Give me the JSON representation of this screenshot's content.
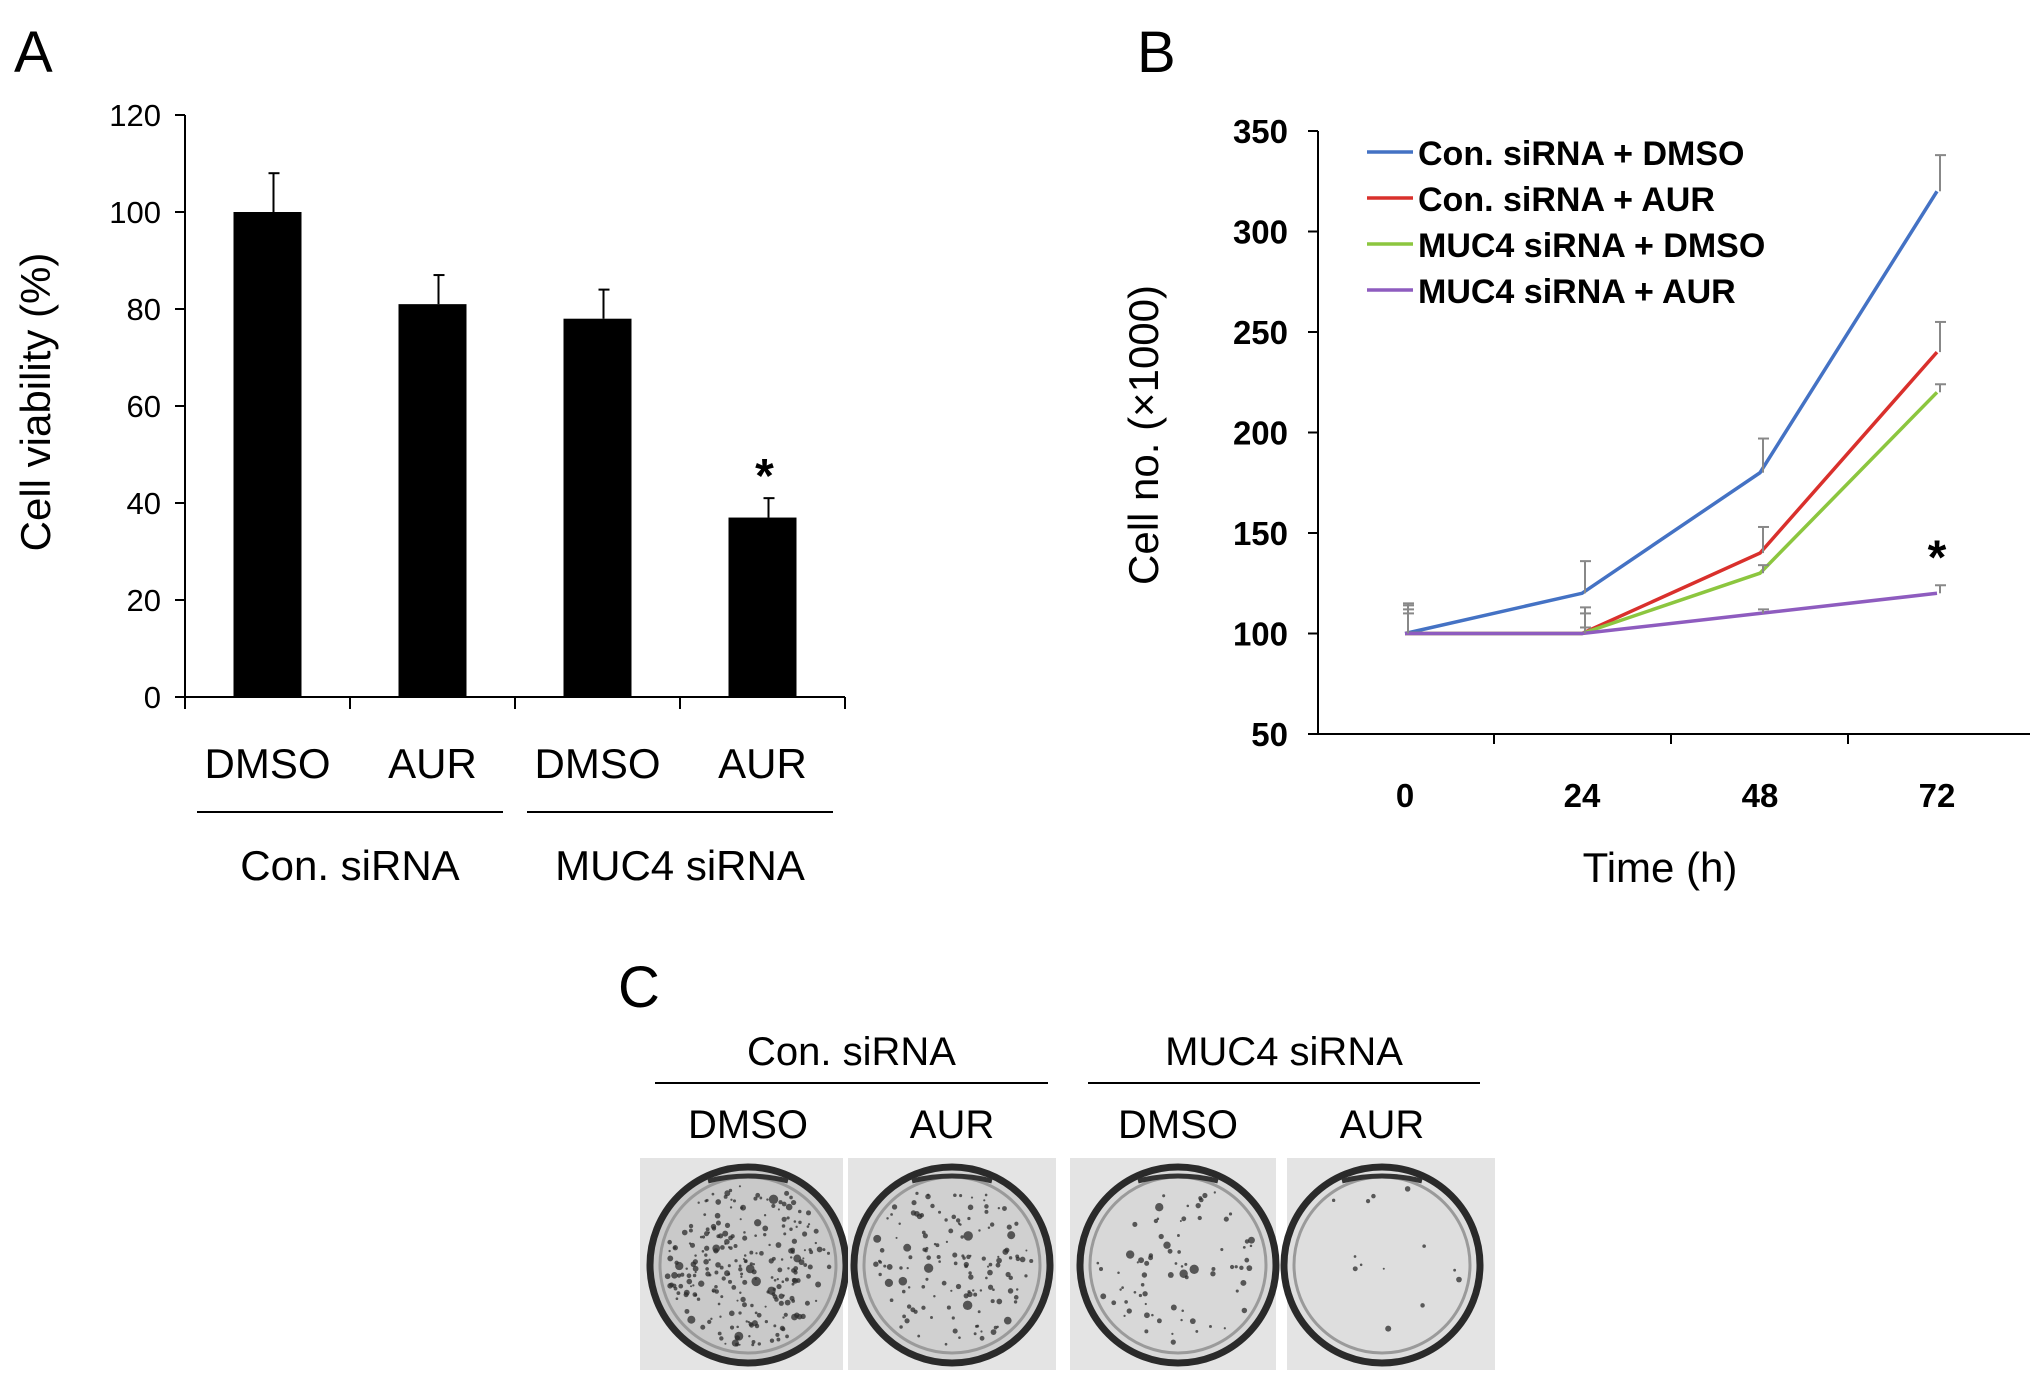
{
  "panels": {
    "a": {
      "letter": "A"
    },
    "b": {
      "letter": "B"
    },
    "c": {
      "letter": "C"
    }
  },
  "chart_data": [
    {
      "type": "bar",
      "panel": "A",
      "ylabel": "Cell viability (%)",
      "ylim": [
        0,
        120
      ],
      "yticks": [
        0,
        20,
        40,
        60,
        80,
        100,
        120
      ],
      "categories": [
        "DMSO",
        "AUR",
        "DMSO",
        "AUR"
      ],
      "groups": [
        {
          "label": "Con. siRNA",
          "members": [
            0,
            1
          ]
        },
        {
          "label": "MUC4 siRNA",
          "members": [
            2,
            3
          ]
        }
      ],
      "values": [
        100,
        81,
        78,
        37
      ],
      "errors": [
        8,
        6,
        6,
        4
      ],
      "significance": [
        "",
        "",
        "",
        "*"
      ],
      "bar_color": "#000000"
    },
    {
      "type": "line",
      "panel": "B",
      "xlabel": "Time (h)",
      "ylabel": "Cell no. (×1000)",
      "x": [
        0,
        24,
        48,
        72
      ],
      "ylim": [
        50,
        350
      ],
      "yticks": [
        50,
        100,
        150,
        200,
        250,
        300,
        350
      ],
      "legend_position": "top-left",
      "series": [
        {
          "name": "Con. siRNA + DMSO",
          "color": "#4472c4",
          "values": [
            100,
            120,
            180,
            320
          ],
          "errors": [
            15,
            16,
            17,
            18
          ]
        },
        {
          "name": "Con. siRNA + AUR",
          "color": "#d9302c",
          "values": [
            100,
            100,
            140,
            240
          ],
          "errors": [
            14,
            13,
            13,
            15
          ]
        },
        {
          "name": "MUC4 siRNA + DMSO",
          "color": "#8cc63f",
          "values": [
            100,
            100,
            130,
            220
          ],
          "errors": [
            12,
            10,
            4,
            4
          ]
        },
        {
          "name": "MUC4 siRNA + AUR",
          "color": "#8e5cbf",
          "values": [
            100,
            100,
            110,
            120
          ],
          "errors": [
            10,
            3,
            2,
            4
          ]
        }
      ],
      "annotation": "*"
    }
  ],
  "panel_c": {
    "groups": [
      {
        "label": "Con. siRNA",
        "conditions": [
          "DMSO",
          "AUR"
        ]
      },
      {
        "label": "MUC4 siRNA",
        "conditions": [
          "DMSO",
          "AUR"
        ]
      }
    ],
    "colony_density": [
      1.0,
      0.55,
      0.3,
      0.05
    ]
  }
}
